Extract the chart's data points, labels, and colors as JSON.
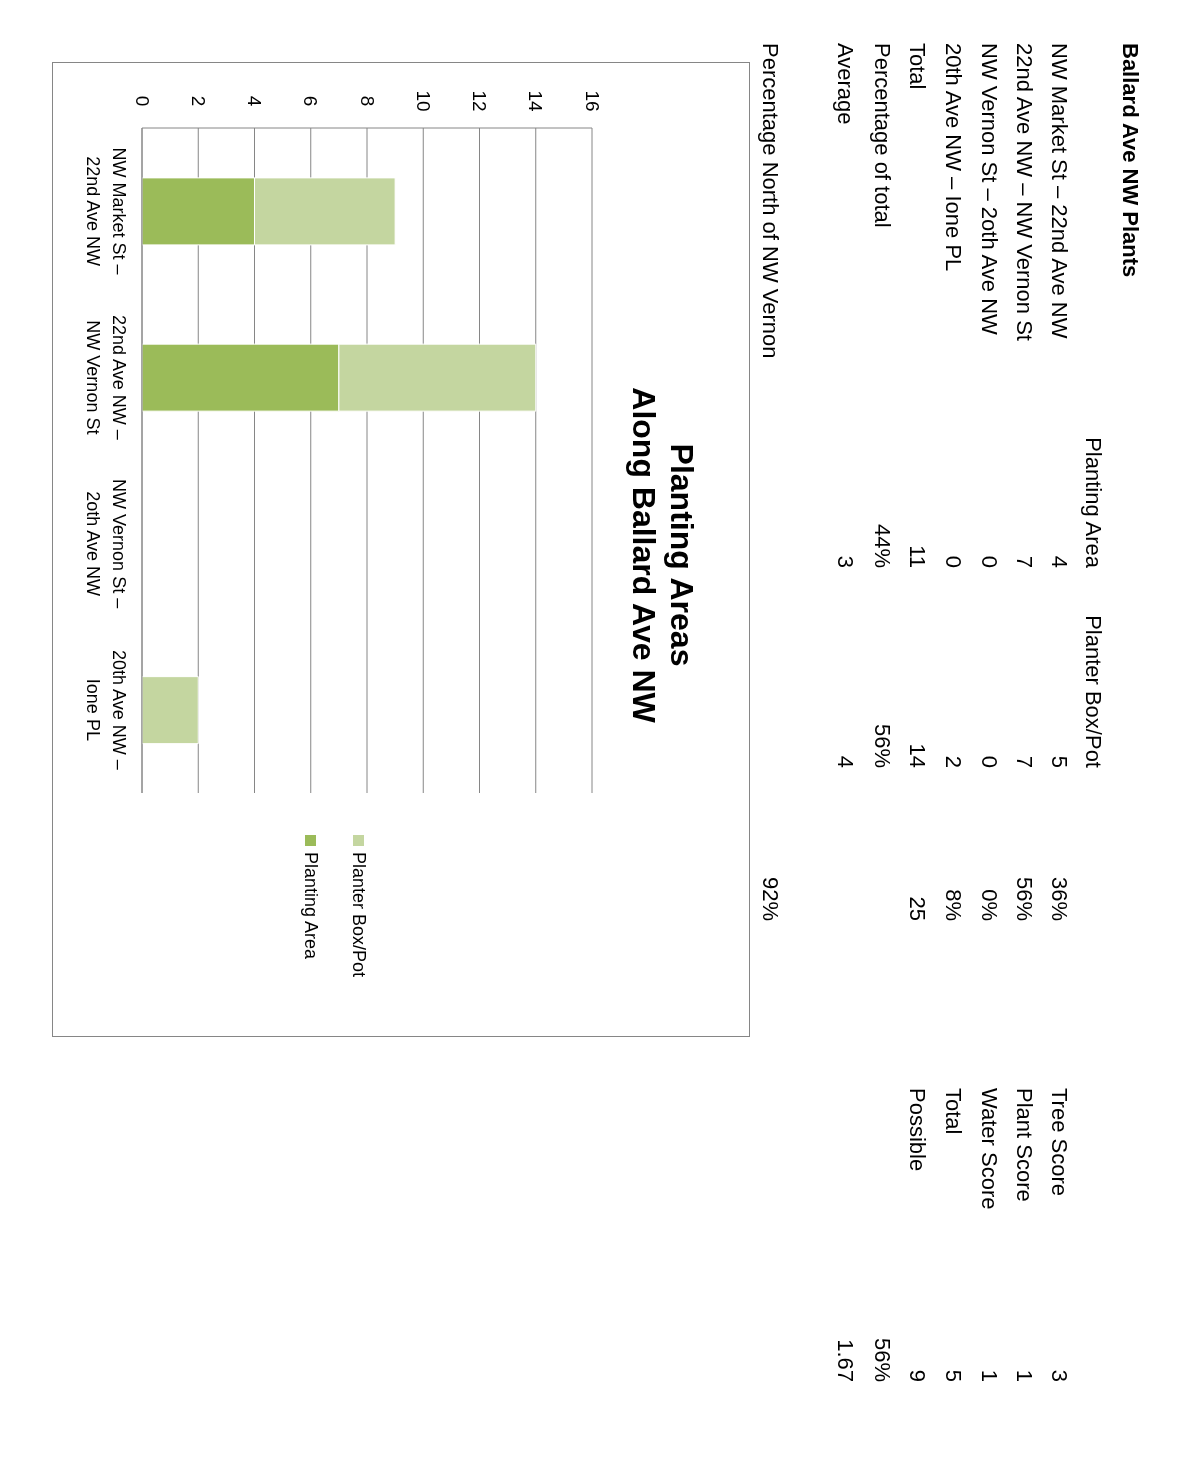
{
  "chart_data": [
    {
      "type": "other",
      "title": "Ballard Ave NW Plants",
      "annotations": [
        "Planting Area",
        "Planter Box/Pot",
        "NW Market St – 22nd Ave NW",
        "4",
        "5",
        "36%",
        "Tree Score",
        "3",
        "22nd Ave NW – NW Vernon St",
        "7",
        "7",
        "56%",
        "Plant Score",
        "1",
        "NW Vernon St – 2oth Ave NW",
        "0",
        "0",
        "0%",
        "Water Score",
        "1",
        "20th Ave NW – Ione PL",
        "0",
        "2",
        "8%",
        "Total",
        "5",
        "Total",
        "11",
        "14",
        "25",
        "Possible",
        "9",
        "Percentage of total",
        "44%",
        "56%",
        "56%",
        "Average",
        "3",
        "4",
        "1.67",
        "Percentage North of NW Vernon",
        "92%"
      ]
    },
    {
      "type": "bar",
      "annotations": [
        "Planting Areas\nAlong Ballard Ave NW"
      ],
      "orientation": "horizontal",
      "categories": [
        "NW Market St – 22nd Ave NW",
        "22nd Ave NW – NW Vernon St",
        "NW Vernon St – 2oth Ave NW",
        "20th Ave NW – Ione PL"
      ],
      "series": [
        {
          "name": "Planting Area",
          "color": "#9bbb59",
          "values": [
            4,
            7,
            0,
            0
          ]
        },
        {
          "name": "Planter Box/Pot",
          "color": "#c4d6a0",
          "values": [
            5,
            7,
            0,
            2
          ]
        }
      ],
      "stacked": true,
      "xlim": [
        0,
        16
      ],
      "xticks": [
        0,
        2,
        4,
        6,
        8,
        10,
        12,
        14,
        16
      ],
      "grid": "x",
      "legend": "bottom"
    }
  ]
}
